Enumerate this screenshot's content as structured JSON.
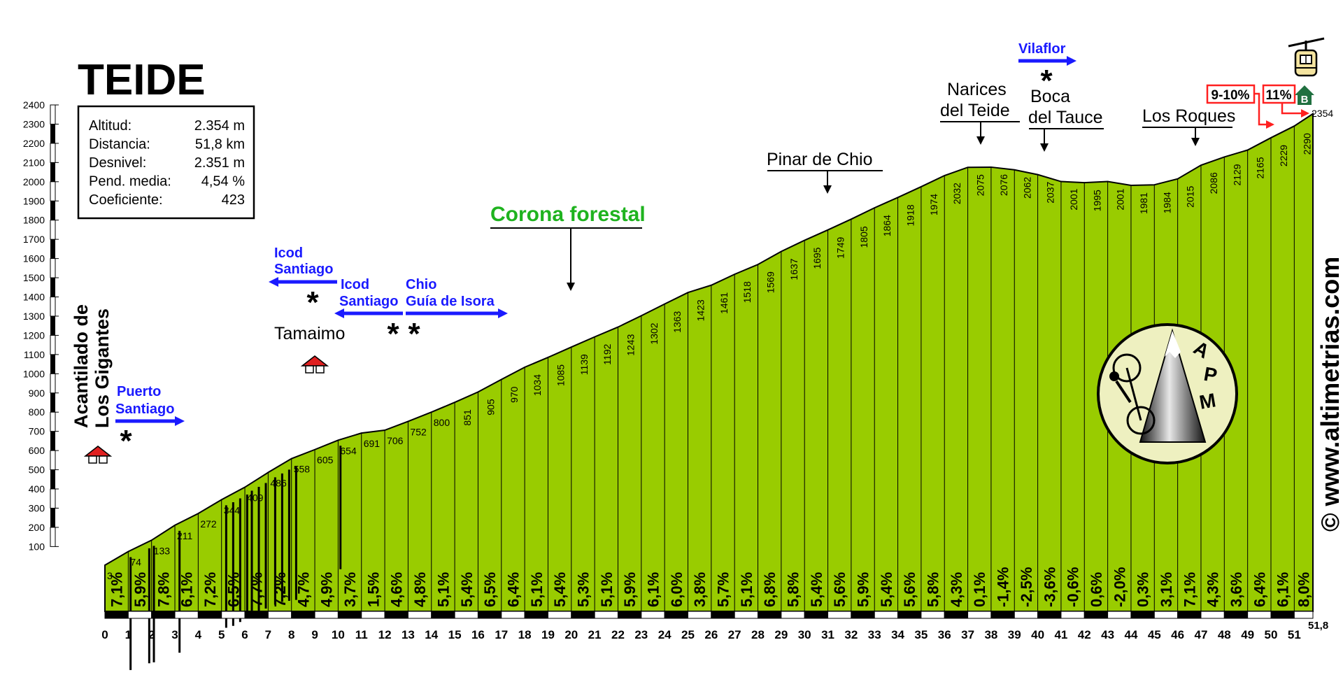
{
  "chart_data": {
    "type": "area",
    "title": "TEIDE",
    "stats": [
      {
        "label": "Altitud:",
        "value": "2.354 m"
      },
      {
        "label": "Distancia:",
        "value": "51,8 km"
      },
      {
        "label": "Desnivel:",
        "value": "2.351 m"
      },
      {
        "label": "Pend. media:",
        "value": "4,54 %"
      },
      {
        "label": "Coeficiente:",
        "value": "423"
      }
    ],
    "x": [
      0,
      1,
      2,
      3,
      4,
      5,
      6,
      7,
      8,
      9,
      10,
      11,
      12,
      13,
      14,
      15,
      16,
      17,
      18,
      19,
      20,
      21,
      22,
      23,
      24,
      25,
      26,
      27,
      28,
      29,
      30,
      31,
      32,
      33,
      34,
      35,
      36,
      37,
      38,
      39,
      40,
      41,
      42,
      43,
      44,
      45,
      46,
      47,
      48,
      49,
      50,
      51,
      51.8
    ],
    "altitudes": [
      3,
      74,
      133,
      211,
      272,
      344,
      409,
      486,
      558,
      605,
      654,
      691,
      706,
      752,
      800,
      851,
      905,
      970,
      1034,
      1085,
      1139,
      1192,
      1243,
      1302,
      1363,
      1423,
      1461,
      1518,
      1569,
      1637,
      1695,
      1749,
      1805,
      1864,
      1918,
      1974,
      2032,
      2075,
      2076,
      2062,
      2037,
      2001,
      1995,
      2001,
      1981,
      1984,
      2015,
      2086,
      2129,
      2165,
      2229,
      2290,
      2354
    ],
    "gradients": [
      "7,1%",
      "5,9%",
      "7,8%",
      "6,1%",
      "7,2%",
      "6,5%",
      "7,7%",
      "7,2%",
      "4,7%",
      "4,9%",
      "3,7%",
      "1,5%",
      "4,6%",
      "4,8%",
      "5,1%",
      "5,4%",
      "6,5%",
      "6,4%",
      "5,1%",
      "5,4%",
      "5,3%",
      "5,1%",
      "5,9%",
      "6,1%",
      "6,0%",
      "3,8%",
      "5,7%",
      "5,1%",
      "6,8%",
      "5,8%",
      "5,4%",
      "5,6%",
      "5,9%",
      "5,4%",
      "5,6%",
      "5,8%",
      "4,3%",
      "0,1%",
      "-1,4%",
      "-2,5%",
      "-3,6%",
      "-0,6%",
      "0,6%",
      "-2,0%",
      "0,3%",
      "3,1%",
      "7,1%",
      "4,3%",
      "3,6%",
      "6,4%",
      "6,1%",
      "8,0%"
    ],
    "x_ticks": [
      "0",
      "1",
      "2",
      "3",
      "4",
      "5",
      "6",
      "7",
      "8",
      "9",
      "10",
      "11",
      "12",
      "13",
      "14",
      "15",
      "16",
      "17",
      "18",
      "19",
      "20",
      "21",
      "22",
      "23",
      "24",
      "25",
      "26",
      "27",
      "28",
      "29",
      "30",
      "31",
      "32",
      "33",
      "34",
      "35",
      "36",
      "37",
      "38",
      "39",
      "40",
      "41",
      "42",
      "43",
      "44",
      "45",
      "46",
      "47",
      "48",
      "49",
      "50",
      "51"
    ],
    "x_end_label": "51,8",
    "y_ticks": [
      "100",
      "200",
      "300",
      "400",
      "500",
      "600",
      "700",
      "800",
      "900",
      "1000",
      "1100",
      "1200",
      "1300",
      "1400",
      "1500",
      "1600",
      "1700",
      "1800",
      "1900",
      "2000",
      "2100",
      "2200",
      "2300",
      "2400"
    ],
    "ylim": [
      -150,
      2400
    ],
    "xlim": [
      0,
      51.8
    ],
    "fill_color": "#99cc00",
    "summit_label": "2354",
    "places": {
      "acantilado_l1": "Acantilado de",
      "acantilado_l2": "Los Gigantes",
      "puerto_santiago_l1": "Puerto",
      "puerto_santiago_l2": "Santiago",
      "tamaimo": "Tamaimo",
      "icod1_l1": "Icod",
      "icod1_l2": "Santiago",
      "icod2_l1": "Icod",
      "icod2_l2": "Santiago",
      "chio_l1": "Chio",
      "chio_l2": "Guía de Isora",
      "corona": "Corona forestal",
      "pinar": "Pinar de Chio",
      "narices_l1": "Narices",
      "narices_l2": "del Teide",
      "vilaflor": "Vilaflor",
      "boca_l1": "Boca",
      "boca_l2": "del Tauce",
      "roques": "Los Roques",
      "grad_box1": "9-10%",
      "grad_box2": "11%",
      "badge": "B"
    },
    "logo_text": "APM",
    "credit": "© www.altimetrias.com"
  }
}
